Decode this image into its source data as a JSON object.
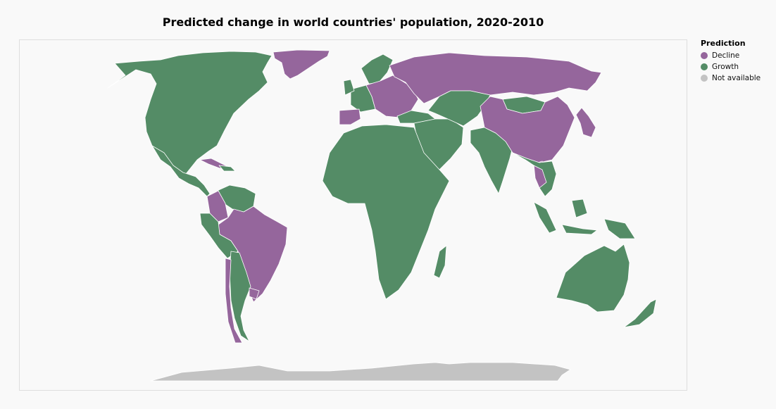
{
  "chart_data": {
    "type": "choropleth",
    "title": "Predicted change in world countries' population, 2020-2010",
    "legend": {
      "title": "Prediction",
      "placement": "right",
      "items": [
        {
          "label": "Decline",
          "color": "#95669c"
        },
        {
          "label": "Growth",
          "color": "#548c66"
        },
        {
          "label": "Not available",
          "color": "#c3c3c3"
        }
      ]
    },
    "regions": {
      "north-america": "Growth",
      "greenland": "Decline",
      "central-america": "Growth",
      "cuba": "Decline",
      "caribbean": "Growth",
      "venezuela-colombia": "Growth",
      "brazil": "Decline",
      "colombia": "Decline",
      "andes": "Growth",
      "chile": "Decline",
      "argentina": "Growth",
      "uruguay": "Decline",
      "western-europe": "Growth",
      "iberia": "Decline",
      "central-eastern-europe": "Decline",
      "scandinavia": "Growth",
      "russia": "Decline",
      "turkey": "Growth",
      "middle-east": "Growth",
      "africa": "Growth",
      "madagascar": "Growth",
      "central-asia": "Growth",
      "south-asia": "Growth",
      "china": "Decline",
      "mongolia": "Growth",
      "korea-japan": "Decline",
      "thailand": "Decline",
      "southeast-asia": "Growth",
      "indonesia": "Growth",
      "australia": "Growth",
      "new-zealand": "Growth",
      "antarctica": "Not available"
    }
  }
}
